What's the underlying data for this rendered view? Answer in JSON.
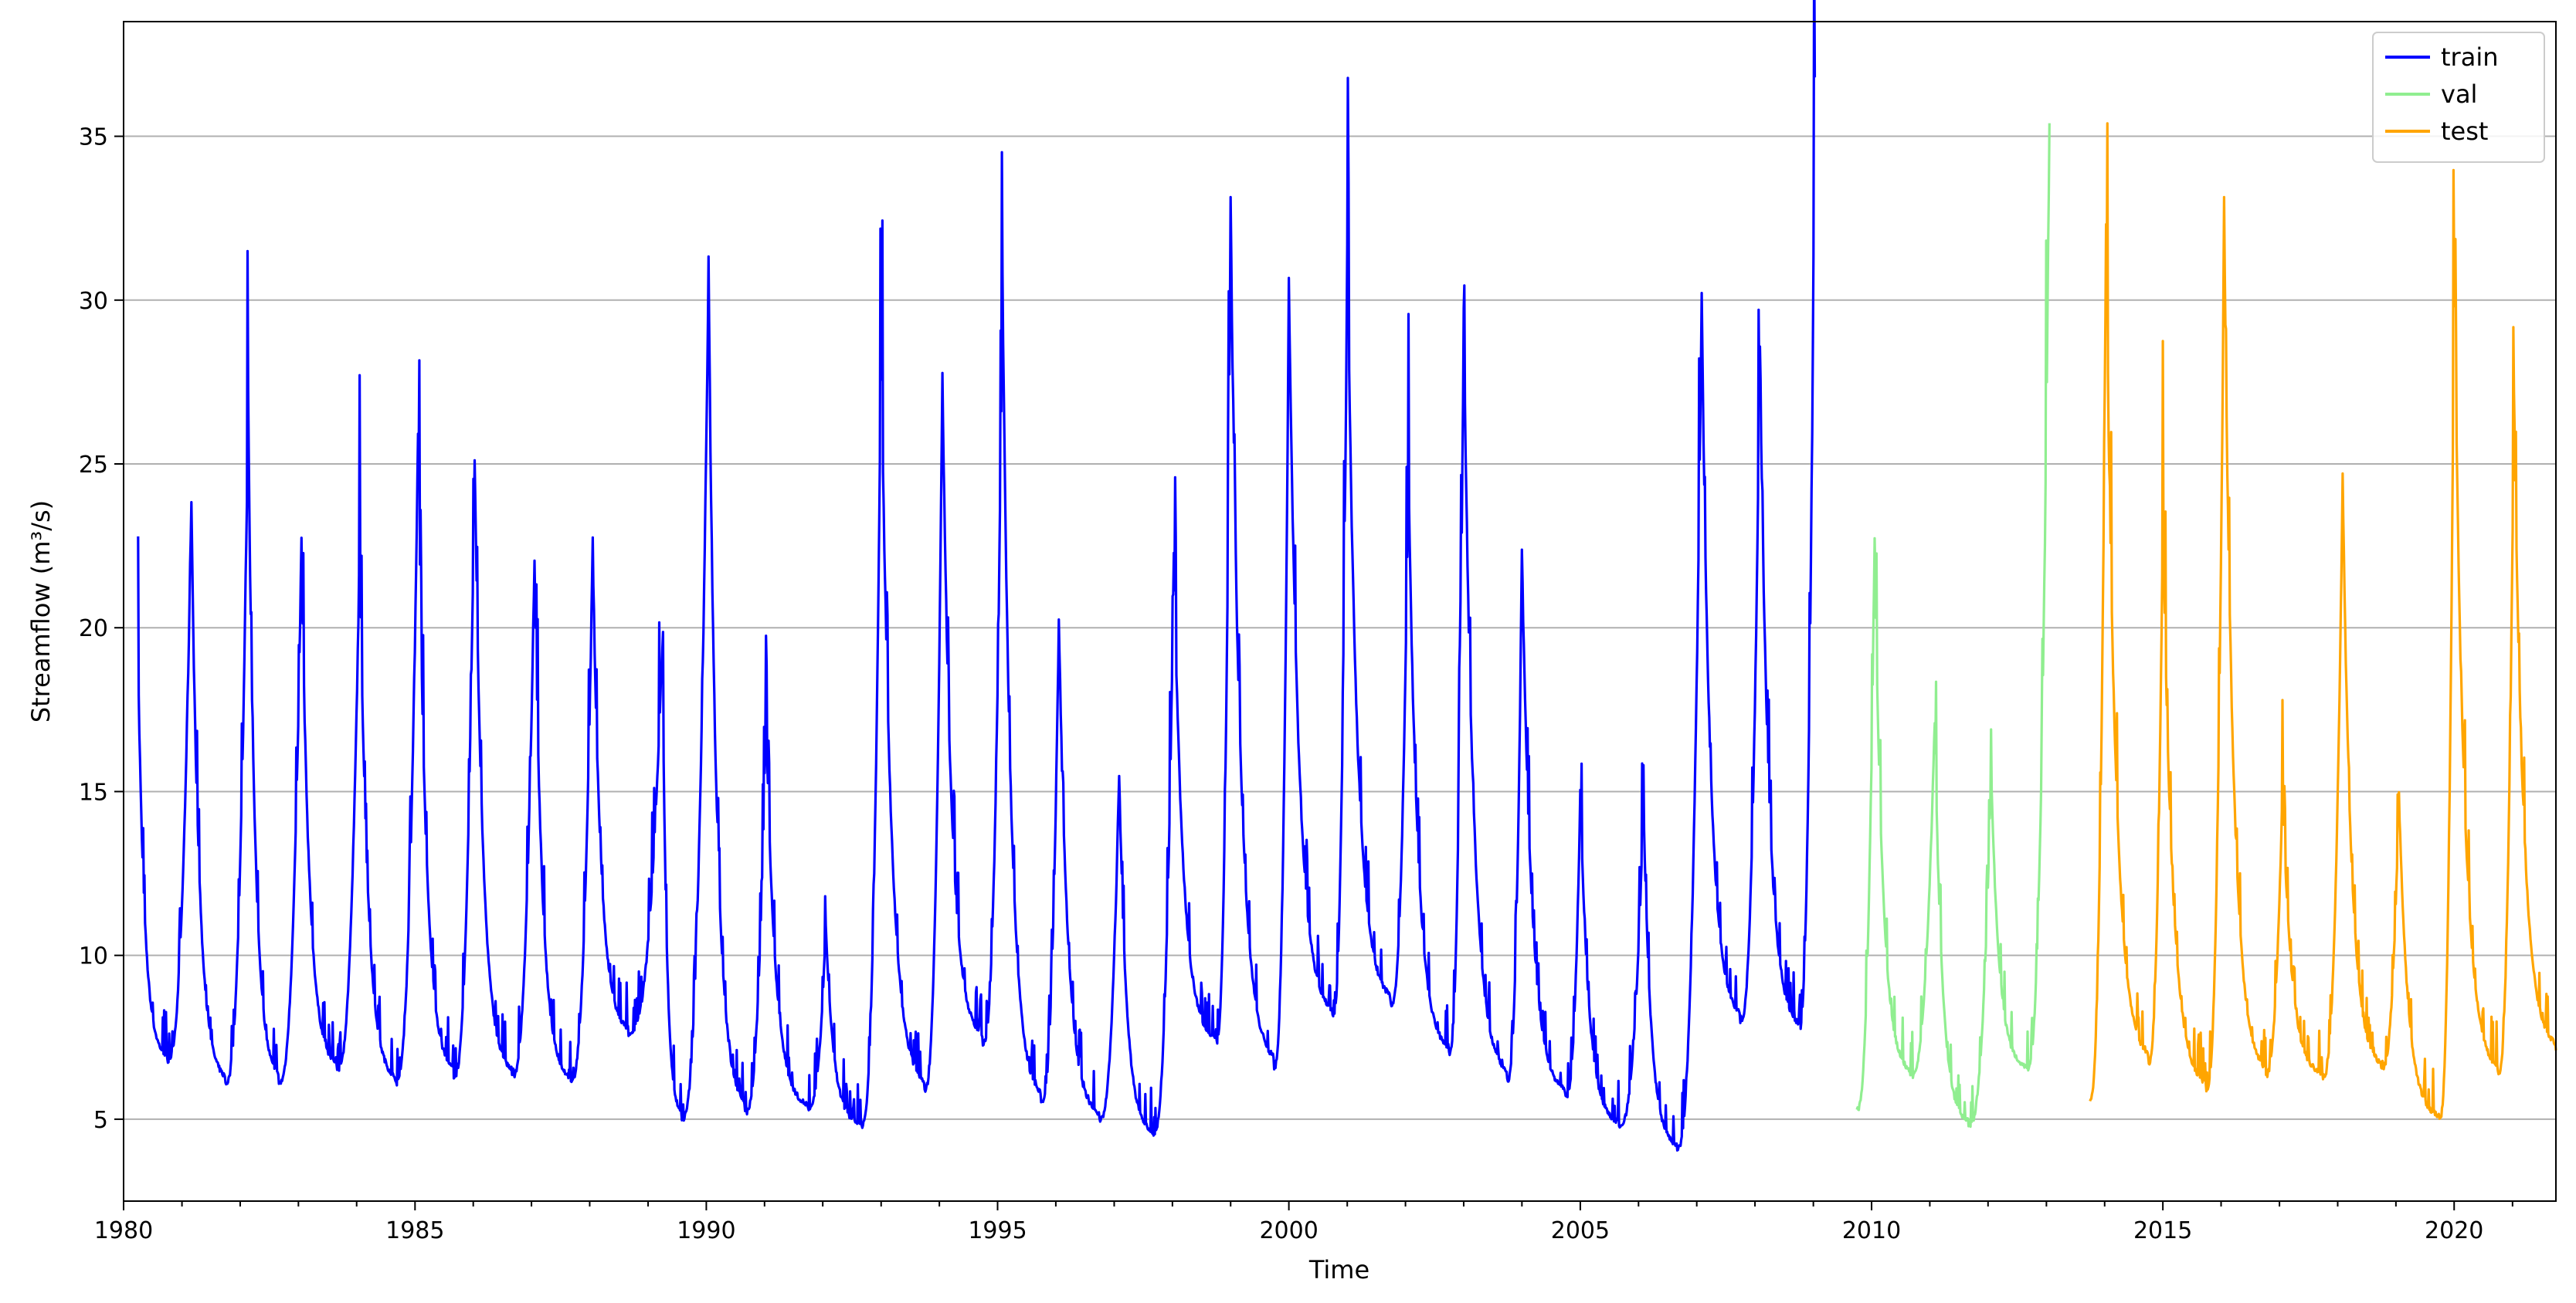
{
  "chart_data": {
    "type": "line",
    "title": "",
    "xlabel": "Time",
    "ylabel": "Streamflow (m³/s)",
    "xlim": [
      "1980-01-01",
      "2021-09-30"
    ],
    "ylim": [
      2.5,
      38.5
    ],
    "x_ticks": [
      "1980",
      "1985",
      "1990",
      "1995",
      "2000",
      "2005",
      "2010",
      "2015",
      "2020"
    ],
    "y_ticks": [
      5,
      10,
      15,
      20,
      25,
      30,
      35
    ],
    "grid": "y",
    "legend": {
      "placement": "top-right",
      "entries": [
        "train",
        "val",
        "test"
      ]
    },
    "series": [
      {
        "name": "train",
        "color": "#0000ff",
        "start": "1980-01-01",
        "end": "2009-03-31",
        "peaks": [
          [
            "1980-04-01",
            19.0
          ],
          [
            "1981-03-01",
            24.0
          ],
          [
            "1982-02-20",
            26.9
          ],
          [
            "1983-01-20",
            22.6
          ],
          [
            "1984-01-20",
            22.6
          ],
          [
            "1985-01-20",
            26.0
          ],
          [
            "1986-01-10",
            25.3
          ],
          [
            "1987-01-20",
            22.2
          ],
          [
            "1988-01-20",
            22.6
          ],
          [
            "1989-04-01",
            19.5
          ],
          [
            "1990-01-15",
            31.0
          ],
          [
            "1991-01-10",
            17.4
          ],
          [
            "1992-01-20",
            10.9
          ],
          [
            "1993-01-01",
            29.1
          ],
          [
            "1994-01-20",
            27.7
          ],
          [
            "1995-02-01",
            30.5
          ],
          [
            "1996-01-20",
            20.3
          ],
          [
            "1997-02-01",
            15.6
          ],
          [
            "1998-01-10",
            22.3
          ],
          [
            "1999-01-01",
            32.9
          ],
          [
            "2000-01-01",
            30.6
          ],
          [
            "2001-01-01",
            31.9
          ],
          [
            "2002-01-20",
            25.0
          ],
          [
            "2003-01-01",
            29.6
          ],
          [
            "2004-01-01",
            22.4
          ],
          [
            "2005-01-01",
            15.0
          ],
          [
            "2006-02-01",
            14.6
          ],
          [
            "2007-02-01",
            30.1
          ],
          [
            "2008-02-01",
            28.8
          ],
          [
            "2009-01-10",
            36.8
          ]
        ],
        "lows": [
          [
            "1980-10-01",
            6.8
          ],
          [
            "1981-10-01",
            6.1
          ],
          [
            "1982-09-01",
            6.1
          ],
          [
            "1983-09-01",
            6.5
          ],
          [
            "1984-09-01",
            6.1
          ],
          [
            "1985-09-01",
            6.3
          ],
          [
            "1986-09-01",
            6.3
          ],
          [
            "1987-09-01",
            6.1
          ],
          [
            "1988-09-01",
            7.6
          ],
          [
            "1989-08-01",
            5.0
          ],
          [
            "1990-09-01",
            5.2
          ],
          [
            "1991-10-01",
            5.3
          ],
          [
            "1992-09-01",
            4.8
          ],
          [
            "1993-10-01",
            5.9
          ],
          [
            "1994-10-01",
            7.3
          ],
          [
            "1995-10-01",
            5.5
          ],
          [
            "1996-10-01",
            5.0
          ],
          [
            "1997-09-01",
            4.5
          ],
          [
            "1998-10-01",
            7.3
          ],
          [
            "1999-10-01",
            6.6
          ],
          [
            "2000-10-01",
            8.1
          ],
          [
            "2001-10-01",
            8.5
          ],
          [
            "2002-10-01",
            7.0
          ],
          [
            "2003-10-01",
            6.2
          ],
          [
            "2004-10-01",
            5.7
          ],
          [
            "2005-09-01",
            4.8
          ],
          [
            "2006-09-01",
            4.1
          ],
          [
            "2007-10-01",
            8.0
          ],
          [
            "2008-10-01",
            7.7
          ]
        ]
      },
      {
        "name": "val",
        "color": "#90ee90",
        "start": "2009-03-31",
        "end": "2013-03-31",
        "peaks": [
          [
            "2010-01-20",
            22.9
          ],
          [
            "2011-02-01",
            17.2
          ],
          [
            "2012-01-20",
            15.7
          ],
          [
            "2013-01-20",
            35.4
          ]
        ],
        "lows": [
          [
            "2009-10-01",
            5.3
          ],
          [
            "2010-09-01",
            6.3
          ],
          [
            "2011-09-01",
            4.8
          ],
          [
            "2012-09-01",
            6.5
          ]
        ]
      },
      {
        "name": "test",
        "color": "#ffa500",
        "start": "2013-03-31",
        "end": "2021-09-30",
        "peaks": [
          [
            "2014-01-10",
            32.2
          ],
          [
            "2015-01-01",
            23.5
          ],
          [
            "2016-01-20",
            32.8
          ],
          [
            "2017-01-20",
            15.2
          ],
          [
            "2018-02-01",
            24.6
          ],
          [
            "2019-01-20",
            14.9
          ],
          [
            "2020-01-01",
            31.1
          ],
          [
            "2021-01-10",
            27.2
          ]
        ],
        "lows": [
          [
            "2013-10-01",
            5.6
          ],
          [
            "2014-10-01",
            6.7
          ],
          [
            "2015-10-01",
            5.9
          ],
          [
            "2016-10-01",
            6.3
          ],
          [
            "2017-10-01",
            6.3
          ],
          [
            "2018-10-01",
            6.5
          ],
          [
            "2019-10-01",
            5.0
          ],
          [
            "2020-10-01",
            6.3
          ],
          [
            "2021-09-30",
            7.1
          ]
        ]
      }
    ]
  }
}
